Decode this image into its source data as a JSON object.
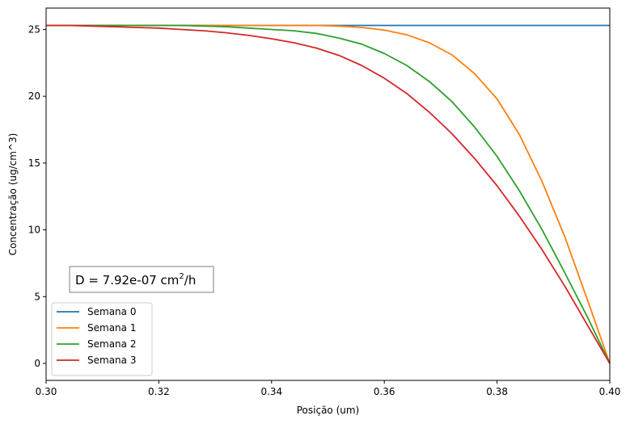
{
  "chart_data": {
    "type": "line",
    "title": "",
    "xlabel": "Posição (um)",
    "ylabel": "Concentração (ug/cm^3)",
    "xlim": [
      0.3,
      0.4
    ],
    "ylim": [
      -1.27,
      26.6
    ],
    "x_ticks": [
      0.3,
      0.32,
      0.34,
      0.36,
      0.38,
      0.4
    ],
    "x_tick_labels": [
      "0.30",
      "0.32",
      "0.34",
      "0.36",
      "0.38",
      "0.40"
    ],
    "y_ticks": [
      0,
      5,
      10,
      15,
      20,
      25
    ],
    "y_tick_labels": [
      "0",
      "5",
      "10",
      "15",
      "20",
      "25"
    ],
    "grid": false,
    "legend_position": "lower-left",
    "annotation": {
      "prefix": "D = 7.92e-07 cm",
      "sup": "2",
      "suffix": "/h"
    },
    "x": [
      0.3,
      0.304,
      0.308,
      0.312,
      0.316,
      0.32,
      0.324,
      0.328,
      0.332,
      0.336,
      0.34,
      0.344,
      0.348,
      0.352,
      0.356,
      0.36,
      0.364,
      0.368,
      0.372,
      0.376,
      0.38,
      0.384,
      0.388,
      0.392,
      0.396,
      0.4
    ],
    "series": [
      {
        "name": "Semana 0",
        "color": "#1f77b4",
        "values": [
          25.3,
          25.3,
          25.3,
          25.3,
          25.3,
          25.3,
          25.3,
          25.3,
          25.3,
          25.3,
          25.3,
          25.3,
          25.3,
          25.3,
          25.3,
          25.3,
          25.3,
          25.3,
          25.3,
          25.3,
          25.3,
          25.3,
          25.3,
          25.3,
          25.3,
          25.3
        ]
      },
      {
        "name": "Semana 1",
        "color": "#ff7f0e",
        "values": [
          25.3,
          25.3,
          25.3,
          25.3,
          25.3,
          25.3,
          25.3,
          25.3,
          25.3,
          25.3,
          25.3,
          25.3,
          25.3,
          25.25,
          25.15,
          24.95,
          24.6,
          24.0,
          23.1,
          21.7,
          19.8,
          17.1,
          13.6,
          9.5,
          4.8,
          0.0
        ]
      },
      {
        "name": "Semana 2",
        "color": "#2ca02c",
        "values": [
          25.3,
          25.3,
          25.3,
          25.3,
          25.3,
          25.3,
          25.3,
          25.25,
          25.2,
          25.1,
          25.0,
          24.9,
          24.7,
          24.35,
          23.9,
          23.2,
          22.3,
          21.1,
          19.6,
          17.7,
          15.5,
          12.9,
          10.0,
          6.8,
          3.5,
          0.0
        ]
      },
      {
        "name": "Semana 3",
        "color": "#d62728",
        "values": [
          25.3,
          25.3,
          25.25,
          25.2,
          25.15,
          25.1,
          25.0,
          24.9,
          24.75,
          24.55,
          24.3,
          24.0,
          23.6,
          23.05,
          22.3,
          21.35,
          20.2,
          18.8,
          17.2,
          15.35,
          13.3,
          11.0,
          8.5,
          5.8,
          2.9,
          0.0
        ]
      }
    ]
  }
}
